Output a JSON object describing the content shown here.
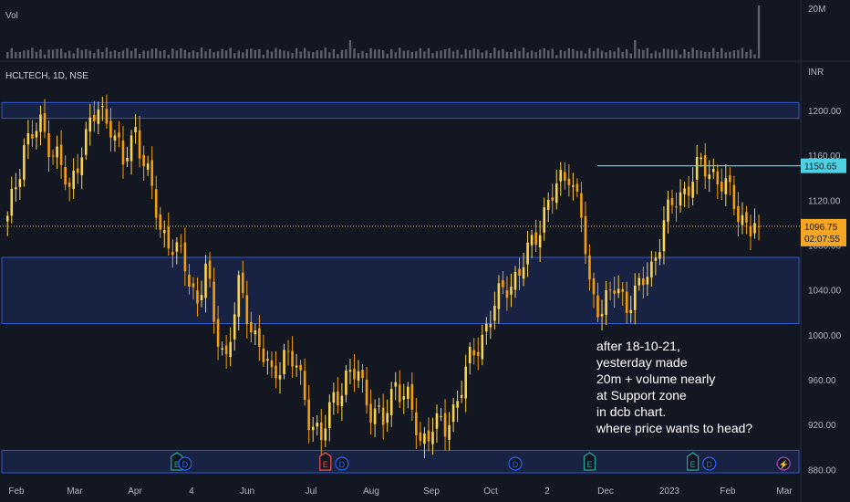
{
  "chart_data": {
    "type": "candlestick",
    "symbol_label": "HCLTECH, 1D, NSE",
    "currency_label": "INR",
    "volume_label": "Vol",
    "volume_max_label": "20M",
    "y_ticks": [
      1200,
      1160,
      1120,
      1080,
      1040,
      1000,
      960,
      920,
      880
    ],
    "y_tick_labels": [
      "1200.00",
      "1160.00",
      "1120.00",
      "1080.00",
      "1040.00",
      "1000.00",
      "960.00",
      "920.00",
      "880.00"
    ],
    "ylim": [
      877,
      1213
    ],
    "x_ticks": [
      "Feb",
      "Mar",
      "Apr",
      "4",
      "Jun",
      "Jul",
      "Aug",
      "Sep",
      "Oct",
      "2",
      "Dec",
      "2023",
      "Feb",
      "Mar"
    ],
    "zones": [
      {
        "low": 1193,
        "high": 1207
      },
      {
        "low": 1010,
        "high": 1069
      },
      {
        "low": 877,
        "high": 897
      }
    ],
    "resistance_line": {
      "value": 1150.65,
      "label": "1150.65",
      "color": "#4dd0e1"
    },
    "last_price": {
      "value": 1096.75,
      "label": "1096.75",
      "countdown": "02:07:55",
      "color": "#f5a623"
    },
    "price_path": [
      [
        0,
        1100
      ],
      [
        4,
        1170
      ],
      [
        8,
        1185
      ],
      [
        12,
        1160
      ],
      [
        15,
        1125
      ],
      [
        18,
        1170
      ],
      [
        22,
        1200
      ],
      [
        25,
        1190
      ],
      [
        28,
        1150
      ],
      [
        31,
        1185
      ],
      [
        34,
        1140
      ],
      [
        37,
        1095
      ],
      [
        40,
        1080
      ],
      [
        43,
        1060
      ],
      [
        46,
        1030
      ],
      [
        48,
        1060
      ],
      [
        50,
        1010
      ],
      [
        53,
        980
      ],
      [
        56,
        1040
      ],
      [
        58,
        1020
      ],
      [
        61,
        990
      ],
      [
        64,
        960
      ],
      [
        67,
        985
      ],
      [
        70,
        970
      ],
      [
        73,
        930
      ],
      [
        76,
        905
      ],
      [
        79,
        945
      ],
      [
        82,
        960
      ],
      [
        85,
        965
      ],
      [
        88,
        935
      ],
      [
        91,
        920
      ],
      [
        94,
        960
      ],
      [
        97,
        940
      ],
      [
        100,
        905
      ],
      [
        103,
        920
      ],
      [
        106,
        915
      ],
      [
        109,
        945
      ],
      [
        112,
        975
      ],
      [
        115,
        1000
      ],
      [
        118,
        1025
      ],
      [
        121,
        1045
      ],
      [
        124,
        1055
      ],
      [
        127,
        1080
      ],
      [
        130,
        1110
      ],
      [
        133,
        1130
      ],
      [
        136,
        1148
      ],
      [
        139,
        1105
      ],
      [
        141,
        1040
      ],
      [
        144,
        1025
      ],
      [
        147,
        1040
      ],
      [
        150,
        1030
      ],
      [
        153,
        1040
      ],
      [
        156,
        1060
      ],
      [
        159,
        1100
      ],
      [
        162,
        1120
      ],
      [
        165,
        1135
      ],
      [
        168,
        1150
      ],
      [
        171,
        1145
      ],
      [
        174,
        1130
      ],
      [
        177,
        1110
      ],
      [
        180,
        1095
      ],
      [
        182,
        1096.75
      ]
    ],
    "event_markers": [
      {
        "type": "E",
        "color": "#26a69a",
        "x_index": 41
      },
      {
        "type": "D",
        "color": "#2962ff",
        "x_index": 43
      },
      {
        "type": "E",
        "color": "#ef5350",
        "x_index": 77
      },
      {
        "type": "D",
        "color": "#2962ff",
        "x_index": 81
      },
      {
        "type": "D",
        "color": "#2962ff",
        "x_index": 123
      },
      {
        "type": "E",
        "color": "#26a69a",
        "x_index": 141
      },
      {
        "type": "E",
        "color": "#26a69a",
        "x_index": 166
      },
      {
        "type": "D",
        "color": "#2962ff",
        "x_index": 170
      },
      {
        "type": "⚡",
        "color": "#ab47bc",
        "x_index": 188
      }
    ],
    "annotation": [
      "after 18-10-21,",
      "yesterday made",
      "20m + volume nearly",
      "at Support zone",
      "in dcb chart.",
      "where price wants to head?"
    ]
  },
  "colors": {
    "background": "#131722",
    "axis_text": "#b2b5be",
    "candle_up": "#fcd34d",
    "candle_down": "#f59e0b",
    "zone_fill": "#1a2448",
    "zone_border": "#3057d0",
    "volume": "#5d606b"
  }
}
